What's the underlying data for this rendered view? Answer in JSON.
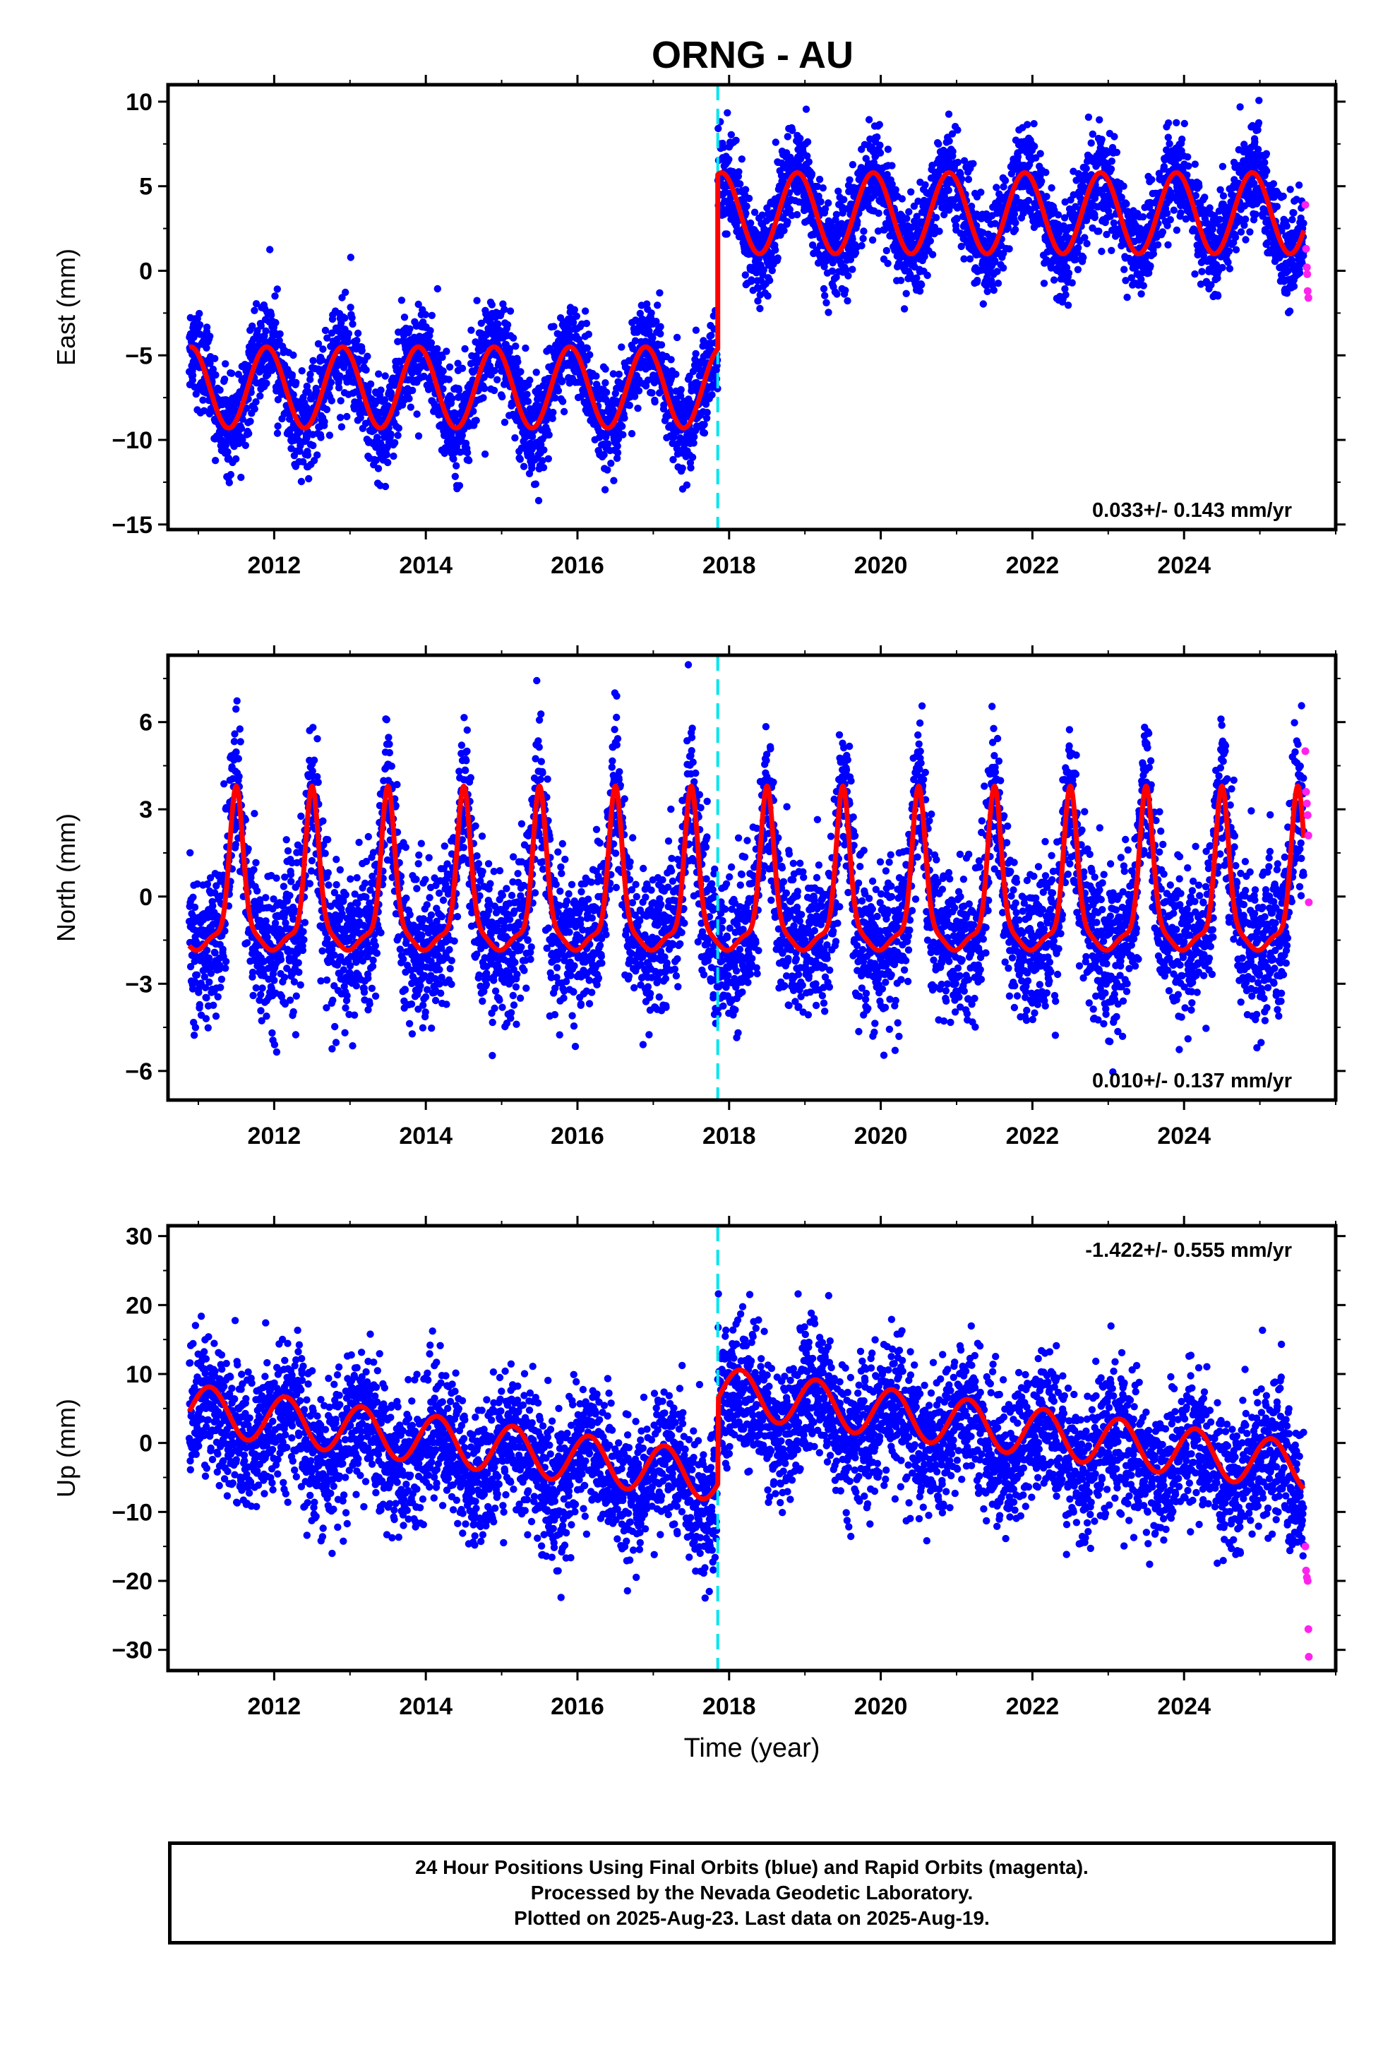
{
  "title": "ORNG - AU",
  "colors": {
    "final_orbits": "#0000ff",
    "rapid_orbits": "#ff22ee",
    "model_fit": "#ff0000",
    "offset_line": "#00e5ee",
    "frame": "#000000"
  },
  "chart_data": [
    {
      "type": "scatter",
      "component": "East",
      "ylabel": "East (mm)",
      "xlabel": "",
      "xlim": [
        2010.6,
        2026.0
      ],
      "ylim": [
        -15.3,
        11.0
      ],
      "yticks": [
        10,
        5,
        0,
        -5,
        -10,
        -15
      ],
      "xticks": [
        2012,
        2014,
        2016,
        2018,
        2020,
        2022,
        2024
      ],
      "rate_label": "0.033+/- 0.143 mm/yr",
      "rate_position": "bottom-right",
      "offset_epoch": 2017.85,
      "series": [
        {
          "name": "Final Orbits",
          "role": "final",
          "x_range": [
            2010.88,
            2025.58
          ],
          "model": {
            "before_offset_mean": -6.9,
            "after_offset_mean": 3.4,
            "annual_amplitude": 2.4,
            "annual_peak": 2010.9,
            "noise_sd": 1.4
          }
        },
        {
          "name": "Rapid Orbits",
          "role": "rapid",
          "x": [
            2025.6,
            2025.61,
            2025.62,
            2025.625,
            2025.63,
            2025.64
          ],
          "y": [
            3.9,
            1.3,
            0.2,
            -0.2,
            -1.2,
            -1.6
          ]
        },
        {
          "name": "Model fit",
          "role": "fit",
          "points": [
            [
              2010.88,
              -4.5
            ],
            [
              2011.1,
              -6.5
            ],
            [
              2011.4,
              -9.3
            ],
            [
              2011.9,
              -4.5
            ],
            [
              2012.4,
              -9.3
            ],
            [
              2012.9,
              -4.5
            ],
            [
              2013.4,
              -9.3
            ],
            [
              2013.9,
              -4.5
            ],
            [
              2014.4,
              -9.3
            ],
            [
              2014.9,
              -4.5
            ],
            [
              2015.4,
              -9.3
            ],
            [
              2015.9,
              -4.5
            ],
            [
              2016.4,
              -9.3
            ],
            [
              2016.9,
              -4.5
            ],
            [
              2017.4,
              -9.3
            ],
            [
              2017.85,
              -4.6
            ]
          ],
          "points_after": [
            [
              2017.85,
              5.8
            ],
            [
              2018.0,
              5.2
            ],
            [
              2018.4,
              1.0
            ],
            [
              2018.9,
              5.8
            ],
            [
              2019.4,
              1.0
            ],
            [
              2019.9,
              5.8
            ],
            [
              2020.4,
              1.0
            ],
            [
              2020.9,
              5.8
            ],
            [
              2021.4,
              1.0
            ],
            [
              2021.9,
              5.8
            ],
            [
              2022.4,
              1.0
            ],
            [
              2022.9,
              5.8
            ],
            [
              2023.4,
              1.0
            ],
            [
              2023.9,
              5.8
            ],
            [
              2024.4,
              1.0
            ],
            [
              2024.9,
              5.8
            ],
            [
              2025.4,
              1.2
            ],
            [
              2025.58,
              2.5
            ]
          ]
        }
      ]
    },
    {
      "type": "scatter",
      "component": "North",
      "ylabel": "North (mm)",
      "xlabel": "",
      "xlim": [
        2010.6,
        2026.0
      ],
      "ylim": [
        -7.0,
        8.3
      ],
      "yticks": [
        6,
        3,
        0,
        -3,
        -6
      ],
      "xticks": [
        2012,
        2014,
        2016,
        2018,
        2020,
        2022,
        2024
      ],
      "rate_label": "0.010+/- 0.137 mm/yr",
      "rate_position": "bottom-right",
      "offset_epoch": 2017.85,
      "series": [
        {
          "name": "Final Orbits",
          "role": "final",
          "x_range": [
            2010.88,
            2025.58
          ],
          "model": {
            "mean": 0.1,
            "noise_sd": 1.3
          }
        },
        {
          "name": "Rapid Orbits",
          "role": "rapid",
          "x": [
            2025.6,
            2025.61,
            2025.62,
            2025.63,
            2025.64,
            2025.645
          ],
          "y": [
            5.0,
            3.6,
            3.2,
            2.8,
            2.1,
            -0.2
          ]
        },
        {
          "name": "Model fit",
          "role": "fit",
          "annual_peaks": [
            2011.5,
            2012.5,
            2013.5,
            2014.5,
            2015.5,
            2016.5,
            2017.5,
            2018.5,
            2019.5,
            2020.5,
            2021.5,
            2022.5,
            2023.5,
            2024.5,
            2025.5
          ],
          "peak_value": 3.8,
          "trough_value": -1.6
        }
      ]
    },
    {
      "type": "scatter",
      "component": "Up",
      "ylabel": "Up (mm)",
      "xlabel": "Time (year)",
      "xlim": [
        2010.6,
        2026.0
      ],
      "ylim": [
        -33.0,
        31.5
      ],
      "yticks": [
        30,
        20,
        10,
        0,
        -10,
        -20,
        -30
      ],
      "xticks": [
        2012,
        2014,
        2016,
        2018,
        2020,
        2022,
        2024
      ],
      "rate_label": "-1.422+/- 0.555 mm/yr",
      "rate_position": "top-right",
      "offset_epoch": 2017.85,
      "series": [
        {
          "name": "Final Orbits",
          "role": "final",
          "x_range": [
            2010.88,
            2025.58
          ],
          "model": {
            "before_offset_start": 7.0,
            "rate": -1.42,
            "after_offset_start": 9.0,
            "annual_amplitude": 3.5,
            "noise_sd": 5.0
          }
        },
        {
          "name": "Rapid Orbits",
          "role": "rapid",
          "x": [
            2025.6,
            2025.61,
            2025.62,
            2025.63,
            2025.64,
            2025.645
          ],
          "y": [
            -15.0,
            -18.5,
            -19.5,
            -20.0,
            -27.0,
            -31.0
          ]
        },
        {
          "name": "Model fit",
          "role": "fit",
          "before": {
            "start_year": 2010.88,
            "start_value": 7.0,
            "rate": -1.42,
            "annual_amplitude": 3.5,
            "annual_peak": 2011.15
          },
          "after": {
            "start_year": 2017.85,
            "start_value": 9.5,
            "rate": -1.42,
            "annual_amplitude": 3.5,
            "annual_peak": 2018.15
          }
        }
      ]
    }
  ],
  "footer": {
    "line1": "24 Hour Positions Using Final Orbits (blue) and Rapid Orbits (magenta).",
    "line2": "Processed by the Nevada Geodetic Laboratory.",
    "line3": "Plotted on 2025-Aug-23. Last data on 2025-Aug-19."
  }
}
